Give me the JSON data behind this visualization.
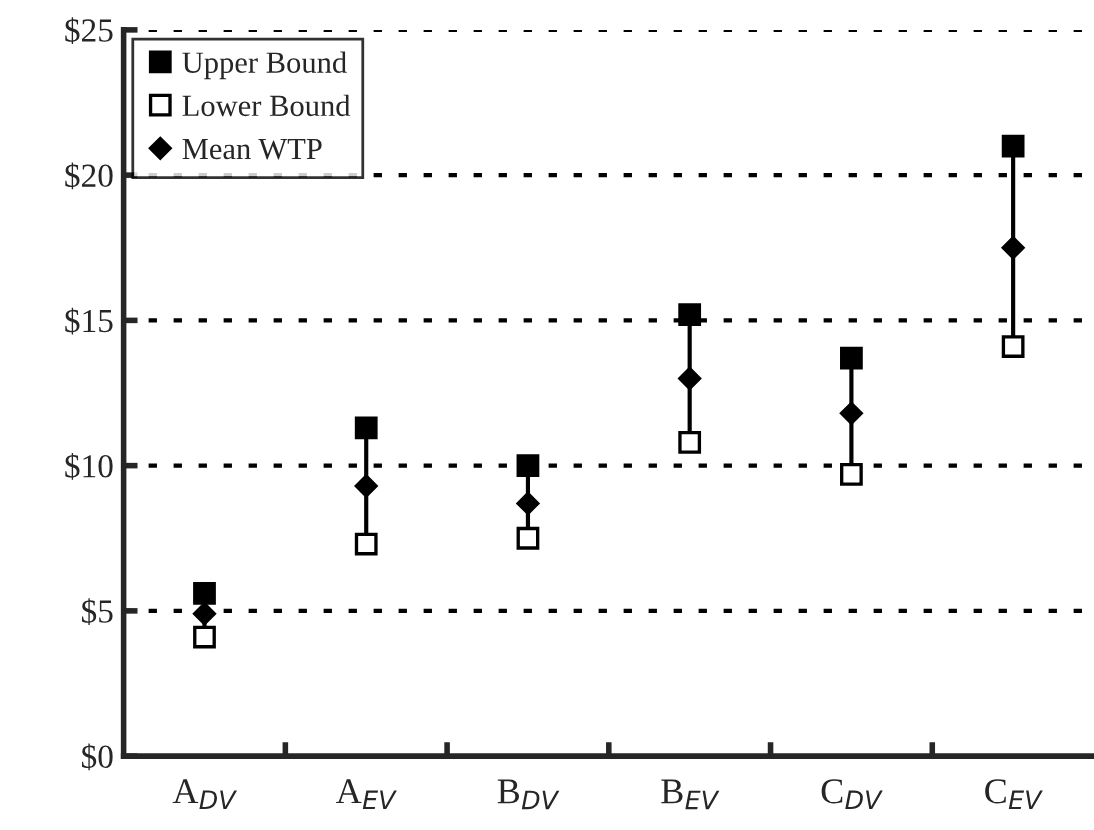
{
  "chart_data": {
    "type": "scatter",
    "categories": [
      "A$_{DV}$",
      "A$_{EV}$",
      "B$_{DV}$",
      "B$_{EV}$",
      "C$_{DV}$",
      "C$_{EV}$"
    ],
    "series": [
      {
        "name": "Upper Bound",
        "color": "#000000",
        "marker": "square",
        "values": [
          5.6,
          11.3,
          10.0,
          15.2,
          13.7,
          21.0
        ]
      },
      {
        "name": "Lower Bound",
        "color": "#ffffff",
        "marker": "square",
        "values": [
          4.1,
          7.3,
          7.5,
          10.8,
          9.7,
          14.1
        ]
      },
      {
        "name": "Mean WTP",
        "color": "#000000",
        "marker": "diamond",
        "values": [
          4.9,
          9.3,
          8.7,
          13.0,
          11.8,
          17.5
        ]
      }
    ],
    "ylim": [
      0,
      25
    ],
    "yticks": [
      {
        "value": 0,
        "label": "$0"
      },
      {
        "value": 5,
        "label": "$5"
      },
      {
        "value": 10,
        "label": "$10"
      },
      {
        "value": 15,
        "label": "$15"
      },
      {
        "value": 20,
        "label": "$20"
      },
      {
        "value": 25,
        "label": "$25"
      }
    ],
    "grid": "y",
    "legend": "top left"
  }
}
